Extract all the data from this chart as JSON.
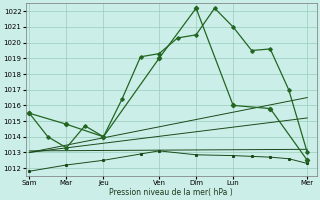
{
  "xlabel": "Pression niveau de la mer( hPa )",
  "background_color": "#cceee8",
  "grid_color": "#99ccbb",
  "line_color_bright": "#226622",
  "line_color_dark": "#1a4a1a",
  "ylim": [
    1011.5,
    1022.5
  ],
  "yticks": [
    1012,
    1013,
    1014,
    1015,
    1016,
    1017,
    1018,
    1019,
    1020,
    1021,
    1022
  ],
  "x_labels": [
    "Sam",
    "Mar",
    "Jeu",
    "Ven",
    "Dim",
    "Lun",
    "Mer"
  ],
  "x_tick_positions": [
    0,
    2,
    4,
    7,
    9,
    11,
    15
  ],
  "xlim": [
    -0.2,
    15.5
  ],
  "line1_x": [
    0,
    1,
    2,
    3,
    4,
    5,
    6,
    7,
    8,
    9,
    10,
    11,
    12,
    13,
    14,
    15
  ],
  "line1_y": [
    1015.5,
    1014.0,
    1013.3,
    1014.7,
    1014.0,
    1016.4,
    1019.1,
    1019.3,
    1020.3,
    1020.5,
    1022.2,
    1021.0,
    1019.5,
    1019.6,
    1017.0,
    1013.0
  ],
  "line2_x": [
    0,
    2,
    4,
    7,
    9,
    11,
    13,
    15
  ],
  "line2_y": [
    1015.5,
    1014.8,
    1014.0,
    1019.0,
    1022.2,
    1016.0,
    1015.8,
    1012.5
  ],
  "line3_x": [
    0,
    15
  ],
  "line3_y": [
    1013.0,
    1016.5
  ],
  "line4_x": [
    0,
    15
  ],
  "line4_y": [
    1013.0,
    1015.2
  ],
  "line5_x": [
    0,
    15
  ],
  "line5_y": [
    1013.1,
    1013.2
  ],
  "line6_x": [
    0,
    2,
    4,
    6,
    7,
    9,
    11,
    12,
    13,
    14,
    15
  ],
  "line6_y": [
    1011.8,
    1012.2,
    1012.5,
    1012.9,
    1013.1,
    1012.85,
    1012.8,
    1012.75,
    1012.7,
    1012.6,
    1012.3
  ]
}
